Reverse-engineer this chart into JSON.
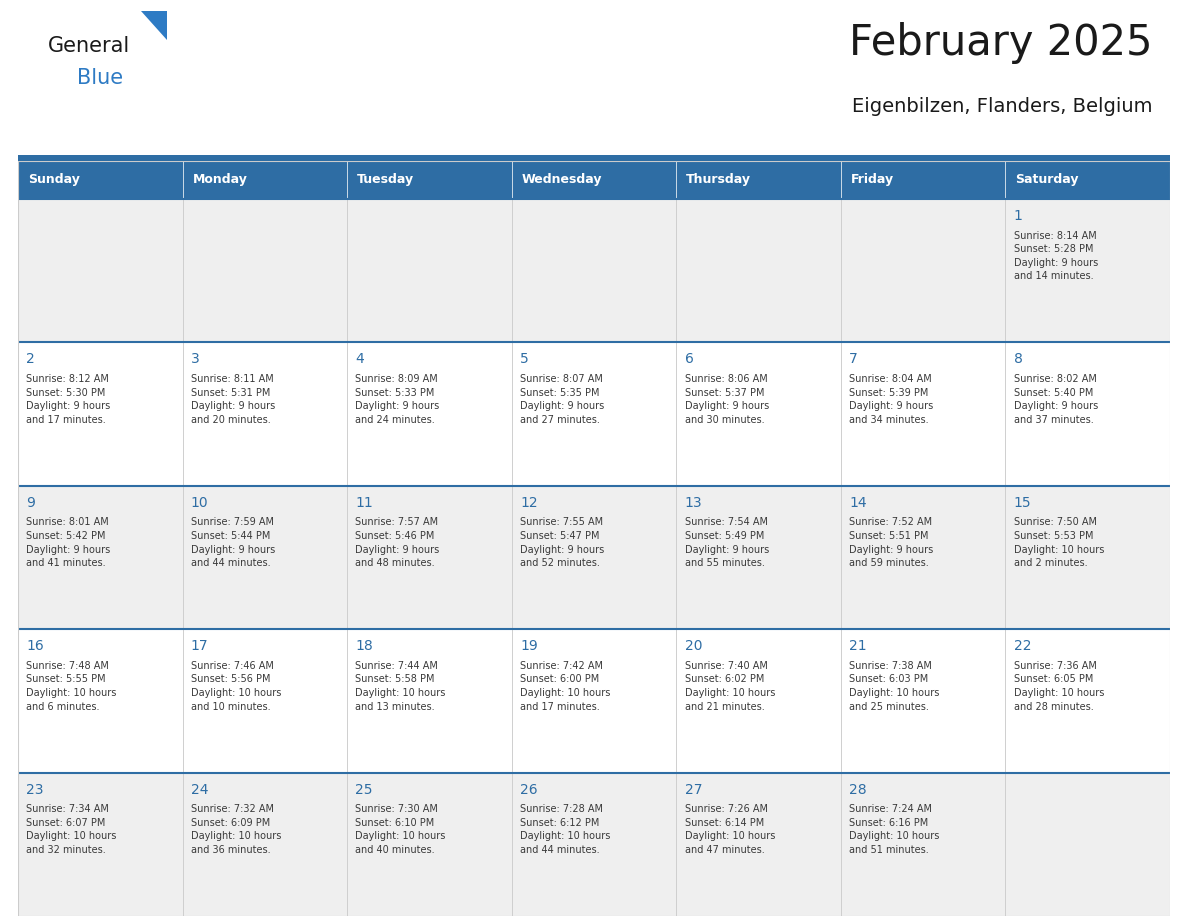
{
  "title": "February 2025",
  "subtitle": "Eigenbilzen, Flanders, Belgium",
  "header_bg": "#2E6DA4",
  "header_text_color": "#FFFFFF",
  "cell_bg_odd": "#EFEFEF",
  "cell_bg_even": "#FFFFFF",
  "day_number_color": "#2E6DA4",
  "cell_text_color": "#3a3a3a",
  "title_color": "#1a1a1a",
  "subtitle_color": "#1a1a1a",
  "logo_general_color": "#1a1a1a",
  "logo_blue_color": "#2E7BC4",
  "separator_color": "#2E6DA4",
  "grid_color": "#CCCCCC",
  "days_of_week": [
    "Sunday",
    "Monday",
    "Tuesday",
    "Wednesday",
    "Thursday",
    "Friday",
    "Saturday"
  ],
  "weeks": [
    [
      {
        "day": null,
        "info": null
      },
      {
        "day": null,
        "info": null
      },
      {
        "day": null,
        "info": null
      },
      {
        "day": null,
        "info": null
      },
      {
        "day": null,
        "info": null
      },
      {
        "day": null,
        "info": null
      },
      {
        "day": 1,
        "info": "Sunrise: 8:14 AM\nSunset: 5:28 PM\nDaylight: 9 hours\nand 14 minutes."
      }
    ],
    [
      {
        "day": 2,
        "info": "Sunrise: 8:12 AM\nSunset: 5:30 PM\nDaylight: 9 hours\nand 17 minutes."
      },
      {
        "day": 3,
        "info": "Sunrise: 8:11 AM\nSunset: 5:31 PM\nDaylight: 9 hours\nand 20 minutes."
      },
      {
        "day": 4,
        "info": "Sunrise: 8:09 AM\nSunset: 5:33 PM\nDaylight: 9 hours\nand 24 minutes."
      },
      {
        "day": 5,
        "info": "Sunrise: 8:07 AM\nSunset: 5:35 PM\nDaylight: 9 hours\nand 27 minutes."
      },
      {
        "day": 6,
        "info": "Sunrise: 8:06 AM\nSunset: 5:37 PM\nDaylight: 9 hours\nand 30 minutes."
      },
      {
        "day": 7,
        "info": "Sunrise: 8:04 AM\nSunset: 5:39 PM\nDaylight: 9 hours\nand 34 minutes."
      },
      {
        "day": 8,
        "info": "Sunrise: 8:02 AM\nSunset: 5:40 PM\nDaylight: 9 hours\nand 37 minutes."
      }
    ],
    [
      {
        "day": 9,
        "info": "Sunrise: 8:01 AM\nSunset: 5:42 PM\nDaylight: 9 hours\nand 41 minutes."
      },
      {
        "day": 10,
        "info": "Sunrise: 7:59 AM\nSunset: 5:44 PM\nDaylight: 9 hours\nand 44 minutes."
      },
      {
        "day": 11,
        "info": "Sunrise: 7:57 AM\nSunset: 5:46 PM\nDaylight: 9 hours\nand 48 minutes."
      },
      {
        "day": 12,
        "info": "Sunrise: 7:55 AM\nSunset: 5:47 PM\nDaylight: 9 hours\nand 52 minutes."
      },
      {
        "day": 13,
        "info": "Sunrise: 7:54 AM\nSunset: 5:49 PM\nDaylight: 9 hours\nand 55 minutes."
      },
      {
        "day": 14,
        "info": "Sunrise: 7:52 AM\nSunset: 5:51 PM\nDaylight: 9 hours\nand 59 minutes."
      },
      {
        "day": 15,
        "info": "Sunrise: 7:50 AM\nSunset: 5:53 PM\nDaylight: 10 hours\nand 2 minutes."
      }
    ],
    [
      {
        "day": 16,
        "info": "Sunrise: 7:48 AM\nSunset: 5:55 PM\nDaylight: 10 hours\nand 6 minutes."
      },
      {
        "day": 17,
        "info": "Sunrise: 7:46 AM\nSunset: 5:56 PM\nDaylight: 10 hours\nand 10 minutes."
      },
      {
        "day": 18,
        "info": "Sunrise: 7:44 AM\nSunset: 5:58 PM\nDaylight: 10 hours\nand 13 minutes."
      },
      {
        "day": 19,
        "info": "Sunrise: 7:42 AM\nSunset: 6:00 PM\nDaylight: 10 hours\nand 17 minutes."
      },
      {
        "day": 20,
        "info": "Sunrise: 7:40 AM\nSunset: 6:02 PM\nDaylight: 10 hours\nand 21 minutes."
      },
      {
        "day": 21,
        "info": "Sunrise: 7:38 AM\nSunset: 6:03 PM\nDaylight: 10 hours\nand 25 minutes."
      },
      {
        "day": 22,
        "info": "Sunrise: 7:36 AM\nSunset: 6:05 PM\nDaylight: 10 hours\nand 28 minutes."
      }
    ],
    [
      {
        "day": 23,
        "info": "Sunrise: 7:34 AM\nSunset: 6:07 PM\nDaylight: 10 hours\nand 32 minutes."
      },
      {
        "day": 24,
        "info": "Sunrise: 7:32 AM\nSunset: 6:09 PM\nDaylight: 10 hours\nand 36 minutes."
      },
      {
        "day": 25,
        "info": "Sunrise: 7:30 AM\nSunset: 6:10 PM\nDaylight: 10 hours\nand 40 minutes."
      },
      {
        "day": 26,
        "info": "Sunrise: 7:28 AM\nSunset: 6:12 PM\nDaylight: 10 hours\nand 44 minutes."
      },
      {
        "day": 27,
        "info": "Sunrise: 7:26 AM\nSunset: 6:14 PM\nDaylight: 10 hours\nand 47 minutes."
      },
      {
        "day": 28,
        "info": "Sunrise: 7:24 AM\nSunset: 6:16 PM\nDaylight: 10 hours\nand 51 minutes."
      },
      {
        "day": null,
        "info": null
      }
    ]
  ],
  "figsize": [
    11.88,
    9.18
  ],
  "dpi": 100
}
